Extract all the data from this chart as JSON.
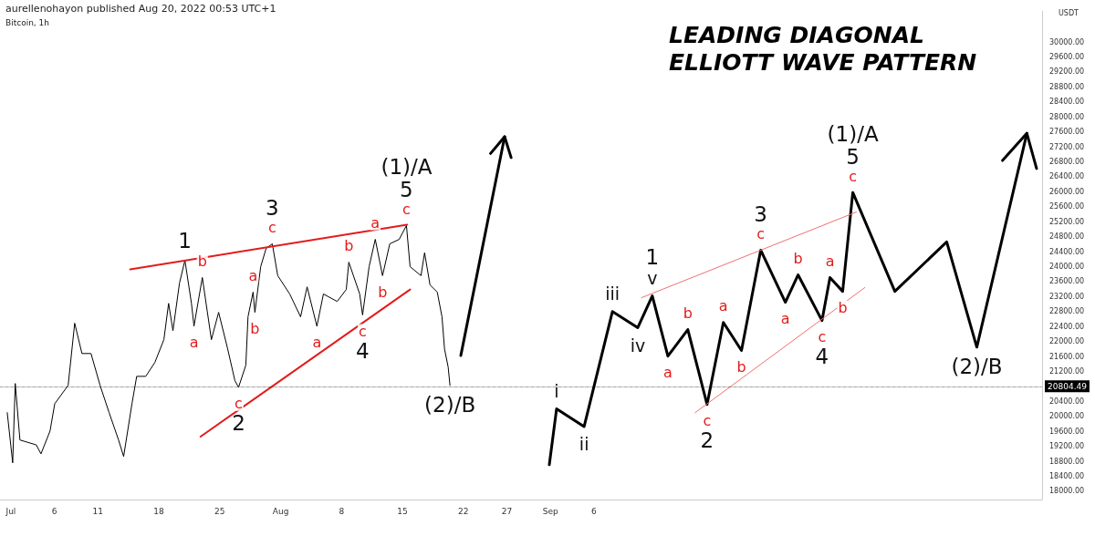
{
  "chart_data": {
    "type": "line",
    "title": "LEADING DIAGONAL ELLIOTT WAVE PATTERN",
    "ylabel": "USDT",
    "xlim": [
      "2022-06-29T18:00",
      "2022-10-27T12:00"
    ],
    "xticks": [
      {
        "value": "2022-07-01",
        "label": "Jul"
      },
      {
        "value": "2022-07-06",
        "label": "6"
      },
      {
        "value": "2022-07-11",
        "label": "11"
      },
      {
        "value": "2022-07-18",
        "label": "18"
      },
      {
        "value": "2022-07-25",
        "label": "25"
      },
      {
        "value": "2022-08-01",
        "label": "Aug"
      },
      {
        "value": "2022-08-08",
        "label": "8"
      },
      {
        "value": "2022-08-15",
        "label": "15"
      },
      {
        "value": "2022-08-22",
        "label": "22"
      },
      {
        "value": "2022-08-27",
        "label": "27"
      },
      {
        "value": "2022-09-01",
        "label": "Sep"
      },
      {
        "value": "2022-09-06",
        "label": "6"
      }
    ],
    "ylim": [
      17780,
      30830
    ],
    "yticks": [
      {
        "value": 18000,
        "label": "18000.00"
      },
      {
        "value": 18400,
        "label": "18400.00"
      },
      {
        "value": 18800,
        "label": "18800.00"
      },
      {
        "value": 19200,
        "label": "19200.00"
      },
      {
        "value": 19600,
        "label": "19600.00"
      },
      {
        "value": 20000,
        "label": "20000.00"
      },
      {
        "value": 20400,
        "label": "20400.00"
      },
      {
        "value": 21200,
        "label": "21200.00"
      },
      {
        "value": 21600,
        "label": "21600.00"
      },
      {
        "value": 22000,
        "label": "22000.00"
      },
      {
        "value": 22400,
        "label": "22400.00"
      },
      {
        "value": 22800,
        "label": "22800.00"
      },
      {
        "value": 23200,
        "label": "23200.00"
      },
      {
        "value": 23600,
        "label": "23600.00"
      },
      {
        "value": 24000,
        "label": "24000.00"
      },
      {
        "value": 24400,
        "label": "24400.00"
      },
      {
        "value": 24800,
        "label": "24800.00"
      },
      {
        "value": 25200,
        "label": "25200.00"
      },
      {
        "value": 25600,
        "label": "25600.00"
      },
      {
        "value": 26000,
        "label": "26000.00"
      },
      {
        "value": 26400,
        "label": "26400.00"
      },
      {
        "value": 26800,
        "label": "26800.00"
      },
      {
        "value": 27200,
        "label": "27200.00"
      },
      {
        "value": 27600,
        "label": "27600.00"
      },
      {
        "value": 28000,
        "label": "28000.00"
      },
      {
        "value": 28400,
        "label": "28400.00"
      },
      {
        "value": 28800,
        "label": "28800.00"
      },
      {
        "value": 29200,
        "label": "29200.00"
      },
      {
        "value": 29600,
        "label": "29600.00"
      },
      {
        "value": 30000,
        "label": "30000.00"
      }
    ],
    "ref_lines": [
      {
        "axis": "y",
        "value": 20804.49,
        "label": "20804.49",
        "color": "#000000",
        "line_style": "dotted"
      }
    ],
    "grid": false,
    "marker": "none",
    "series": [
      {
        "color": "#000000",
        "x": [
          "2022-06-30T14:00",
          "2022-07-01T05:00",
          "2022-07-01T12:00",
          "2022-07-02T01:00",
          "2022-07-03T22:00",
          "2022-07-04T11:00",
          "2022-07-05T12:00",
          "2022-07-06T01:00",
          "2022-07-07T14:00",
          "2022-07-08T08:00",
          "2022-07-09T04:00",
          "2022-07-10T05:00",
          "2022-07-11T06:00",
          "2022-07-12T07:00",
          "2022-07-13T09:00",
          "2022-07-13T23:00",
          "2022-07-14T22:00",
          "2022-07-15T11:00",
          "2022-07-16T12:00",
          "2022-07-17T13:00",
          "2022-07-18T14:00",
          "2022-07-19T03:00",
          "2022-07-19T15:00",
          "2022-07-20T09:00",
          "2022-07-21T00:00",
          "2022-07-21T18:00",
          "2022-07-22T01:00",
          "2022-07-23T00:00",
          "2022-07-24T01:00",
          "2022-07-24T21:00",
          "2022-07-25T22:00",
          "2022-07-26T18:00",
          "2022-07-27T04:00",
          "2022-07-28T00:00",
          "2022-07-28T06:00",
          "2022-07-28T20:00",
          "2022-07-29T01:00",
          "2022-07-29T17:00",
          "2022-07-30T08:00",
          "2022-07-31T01:00",
          "2022-07-31T16:00",
          "2022-08-02T01:00",
          "2022-08-03T07:00",
          "2022-08-04T01:00",
          "2022-08-05T04:00",
          "2022-08-05T22:00",
          "2022-08-07T12:00",
          "2022-08-08T13:00",
          "2022-08-08T20:00",
          "2022-08-10T02:00",
          "2022-08-10T10:00",
          "2022-08-11T04:00",
          "2022-08-11T21:00",
          "2022-08-12T17:00",
          "2022-08-13T13:00",
          "2022-08-14T15:00",
          "2022-08-15T11:00",
          "2022-08-15T21:00",
          "2022-08-17T03:00",
          "2022-08-17T13:00",
          "2022-08-18T04:00",
          "2022-08-19T00:00",
          "2022-08-19T13:00",
          "2022-08-19T20:00",
          "2022-08-20T06:00",
          "2022-08-20T11:00"
        ],
        "values": [
          20100,
          18760,
          20880,
          19370,
          19240,
          19000,
          19610,
          20340,
          20830,
          22490,
          21680,
          21680,
          20830,
          20100,
          19370,
          18930,
          20340,
          21070,
          21070,
          21440,
          22050,
          23020,
          22290,
          23560,
          24170,
          23020,
          22410,
          23710,
          22050,
          22780,
          21800,
          20950,
          20780,
          21370,
          22660,
          23320,
          22780,
          24000,
          24490,
          24610,
          23760,
          23270,
          22660,
          23460,
          22410,
          23270,
          23070,
          23390,
          24120,
          23270,
          22710,
          24000,
          24730,
          23760,
          24610,
          24730,
          25100,
          24000,
          23760,
          24370,
          23510,
          23320,
          22660,
          21800,
          21320,
          20830
        ]
      },
      {
        "color": "#000000",
        "x": [
          "2022-08-31T21:00",
          "2022-09-01T17:00",
          "2022-09-04T21:00",
          "2022-09-08T03:00",
          "2022-09-11T01:00",
          "2022-09-12T17:00",
          "2022-09-14T12:00",
          "2022-09-16T19:00",
          "2022-09-19T00:00",
          "2022-09-20T21:00",
          "2022-09-22T23:00",
          "2022-09-25T04:00",
          "2022-09-28T00:00",
          "2022-09-29T11:00",
          "2022-10-02T05:00",
          "2022-10-03T03:00",
          "2022-10-04T14:00",
          "2022-10-05T18:00",
          "2022-10-10T14:00",
          "2022-10-16T13:00",
          "2022-10-20T00:00",
          "2022-10-25T18:00"
        ],
        "values": [
          18710,
          20200,
          19730,
          22800,
          22370,
          23220,
          21610,
          22320,
          20320,
          22510,
          21760,
          24440,
          23050,
          23780,
          22560,
          23710,
          23340,
          25980,
          23340,
          24660,
          21850,
          27560
        ]
      },
      {
        "color": "#e31b1b",
        "x": [
          "2022-07-14T17:00",
          "2022-08-15T13:00"
        ],
        "values": [
          23930,
          25120
        ]
      },
      {
        "color": "#e31b1b",
        "x": [
          "2022-07-22T19:00",
          "2022-08-15T21:00"
        ],
        "values": [
          19460,
          23390
        ]
      },
      {
        "color": "#f07070",
        "x": [
          "2022-09-11T11:00",
          "2022-10-06T04:00"
        ],
        "values": [
          23170,
          25460
        ]
      },
      {
        "color": "#f07070",
        "x": [
          "2022-09-17T15:00",
          "2022-10-07T03:00"
        ],
        "values": [
          20100,
          23440
        ]
      }
    ],
    "annotations": [
      "aurellenohayon published Aug 20, 2022 00:53 UTC+1",
      "Bitcoin, 1h",
      {
        "text": "1",
        "x": "2022-07-21T00:00",
        "y": 24170
      },
      {
        "text": "a",
        "x": "2022-07-22T01:00",
        "y": 22410
      },
      {
        "text": "b",
        "x": "2022-07-23T00:00",
        "y": 23710
      },
      {
        "text": "c",
        "x": "2022-07-27T04:00",
        "y": 20780
      },
      {
        "text": "2",
        "x": "2022-07-27T04:00",
        "y": 20780
      },
      {
        "text": "a",
        "x": "2022-07-28T20:00",
        "y": 23320
      },
      {
        "text": "b",
        "x": "2022-07-29T01:00",
        "y": 22780
      },
      {
        "text": "c",
        "x": "2022-07-31T01:00",
        "y": 24610
      },
      {
        "text": "3",
        "x": "2022-07-31T01:00",
        "y": 24610
      },
      {
        "text": "a",
        "x": "2022-08-05T04:00",
        "y": 22410
      },
      {
        "text": "b",
        "x": "2022-08-08T20:00",
        "y": 24120
      },
      {
        "text": "c",
        "x": "2022-08-10T10:00",
        "y": 22710
      },
      {
        "text": "4",
        "x": "2022-08-10T10:00",
        "y": 22710
      },
      {
        "text": "a",
        "x": "2022-08-11T21:00",
        "y": 24730
      },
      {
        "text": "b",
        "x": "2022-08-12T17:00",
        "y": 23760
      },
      {
        "text": "c",
        "x": "2022-08-15T11:00",
        "y": 25100
      },
      {
        "text": "5",
        "x": "2022-08-15T11:00",
        "y": 25100
      },
      {
        "text": "(1)/A",
        "x": "2022-08-15T11:00",
        "y": 25100
      },
      {
        "text": "(2)/B",
        "x": "2022-08-20T11:00",
        "y": 20830
      },
      {
        "text": "i",
        "x": "2022-09-01T17:00",
        "y": 20200
      },
      {
        "text": "ii",
        "x": "2022-09-04T21:00",
        "y": 19730
      },
      {
        "text": "iii",
        "x": "2022-09-08T03:00",
        "y": 22800
      },
      {
        "text": "iv",
        "x": "2022-09-11T01:00",
        "y": 22370
      },
      {
        "text": "v",
        "x": "2022-09-12T17:00",
        "y": 23220
      },
      {
        "text": "1",
        "x": "2022-09-12T17:00",
        "y": 23220
      },
      {
        "text": "a",
        "x": "2022-09-14T12:00",
        "y": 21610
      },
      {
        "text": "b",
        "x": "2022-09-16T19:00",
        "y": 22320
      },
      {
        "text": "c",
        "x": "2022-09-19T00:00",
        "y": 20320
      },
      {
        "text": "2",
        "x": "2022-09-19T00:00",
        "y": 20320
      },
      {
        "text": "a",
        "x": "2022-09-20T21:00",
        "y": 22510
      },
      {
        "text": "b",
        "x": "2022-09-22T23:00",
        "y": 21760
      },
      {
        "text": "c",
        "x": "2022-09-25T04:00",
        "y": 24440
      },
      {
        "text": "3",
        "x": "2022-09-25T04:00",
        "y": 24440
      },
      {
        "text": "a",
        "x": "2022-09-28T00:00",
        "y": 23050
      },
      {
        "text": "b",
        "x": "2022-09-29T11:00",
        "y": 23780
      },
      {
        "text": "c",
        "x": "2022-10-02T05:00",
        "y": 22560
      },
      {
        "text": "4",
        "x": "2022-10-02T05:00",
        "y": 22560
      },
      {
        "text": "a",
        "x": "2022-10-03T03:00",
        "y": 23710
      },
      {
        "text": "b",
        "x": "2022-10-04T14:00",
        "y": 23340
      },
      {
        "text": "c",
        "x": "2022-10-05T18:00",
        "y": 25980
      },
      {
        "text": "5",
        "x": "2022-10-05T18:00",
        "y": 25980
      },
      {
        "text": "(1)/A",
        "x": "2022-10-05T18:00",
        "y": 25980
      },
      {
        "text": "(2)/B",
        "x": "2022-10-20T00:00",
        "y": 21850
      }
    ]
  }
}
